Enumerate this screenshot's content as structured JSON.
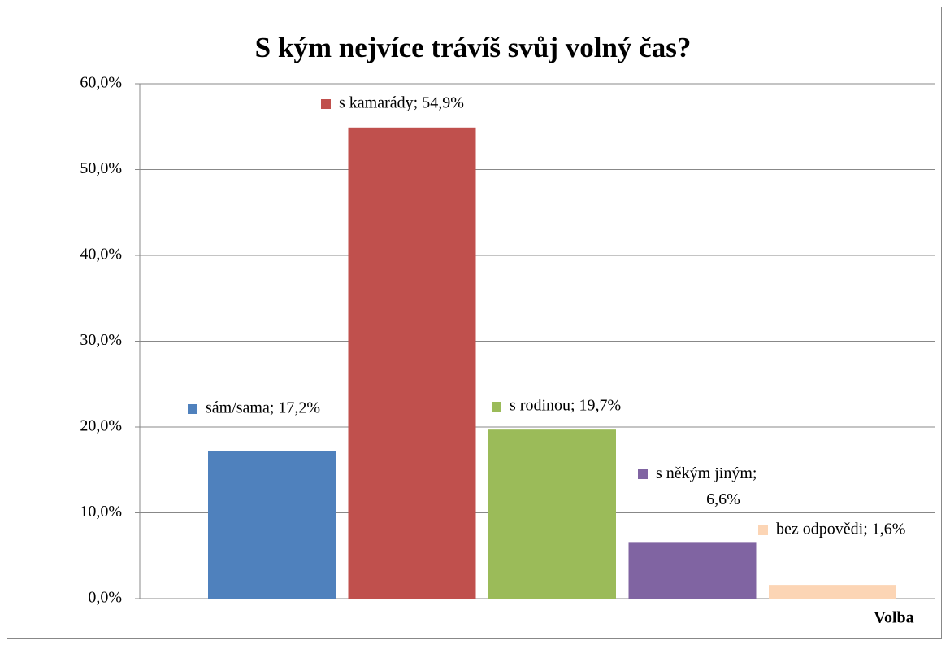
{
  "chart_data": {
    "type": "bar",
    "title": "S kým nejvíce trávíš svůj volný čas?",
    "x_label": "Volba",
    "values": [
      17.2,
      54.9,
      19.7,
      6.6,
      1.6
    ],
    "value_labels": [
      "sám/sama; 17,2%",
      "s kamarády; 54,9%",
      "s rodinou; 19,7%",
      "s někým jiným; 6,6%",
      "bez odpovědi; 1,6%"
    ],
    "colors": [
      "#4f81bd",
      "#c0504d",
      "#9bbb59",
      "#8064a2",
      "#fcd5b5"
    ],
    "ylim": [
      0,
      60
    ],
    "yticks": [
      {
        "value": 0,
        "label": "0,0%"
      },
      {
        "value": 10,
        "label": "10,0%"
      },
      {
        "value": 20,
        "label": "20,0%"
      },
      {
        "value": 30,
        "label": "30,0%"
      },
      {
        "value": 40,
        "label": "40,0%"
      },
      {
        "value": 50,
        "label": "50,0%"
      },
      {
        "value": 60,
        "label": "60,0%"
      }
    ],
    "grid": true
  }
}
